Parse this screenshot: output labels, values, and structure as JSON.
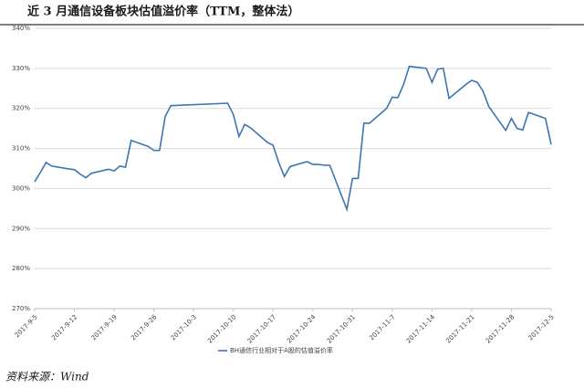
{
  "chart_data": {
    "type": "line",
    "title": "近 3 月通信设备板块估值溢价率（TTM，整体法）",
    "source": "资料来源：Wind",
    "x": [
      "2017-9-5",
      "2017-9-6",
      "2017-9-7",
      "2017-9-8",
      "2017-9-11",
      "2017-9-12",
      "2017-9-13",
      "2017-9-14",
      "2017-9-15",
      "2017-9-18",
      "2017-9-19",
      "2017-9-20",
      "2017-9-21",
      "2017-9-22",
      "2017-9-25",
      "2017-9-26",
      "2017-9-27",
      "2017-9-28",
      "2017-9-29",
      "2017-10-9",
      "2017-10-10",
      "2017-10-11",
      "2017-10-12",
      "2017-10-13",
      "2017-10-16",
      "2017-10-17",
      "2017-10-18",
      "2017-10-19",
      "2017-10-20",
      "2017-10-23",
      "2017-10-24",
      "2017-10-25",
      "2017-10-26",
      "2017-10-27",
      "2017-10-30",
      "2017-10-31",
      "2017-11-1",
      "2017-11-2",
      "2017-11-3",
      "2017-11-6",
      "2017-11-7",
      "2017-11-8",
      "2017-11-9",
      "2017-11-10",
      "2017-11-13",
      "2017-11-14",
      "2017-11-15",
      "2017-11-16",
      "2017-11-17",
      "2017-11-20",
      "2017-11-21",
      "2017-11-22",
      "2017-11-23",
      "2017-11-24",
      "2017-11-27",
      "2017-11-28",
      "2017-11-29",
      "2017-11-30",
      "2017-12-1",
      "2017-12-4",
      "2017-12-5"
    ],
    "series": [
      {
        "name": "BH通信行业相对于A股的估值溢价率",
        "color": "#3c74b4",
        "values": [
          301.7,
          304,
          306.5,
          305.6,
          304.9,
          304.7,
          303.6,
          302.7,
          303.8,
          304.8,
          304.4,
          305.6,
          305.3,
          312,
          310.5,
          309.5,
          309.5,
          318,
          320.7,
          321.3,
          318.5,
          313,
          316,
          315.2,
          311.5,
          310.8,
          306.5,
          303,
          305.5,
          306.7,
          306,
          306,
          305.8,
          305.8,
          294.8,
          302.5,
          302.5,
          316.3,
          316.3,
          320,
          322.8,
          322.7,
          326,
          330.5,
          330,
          326.5,
          329.8,
          330,
          322.5,
          326,
          327,
          326.5,
          324.3,
          320.5,
          314.5,
          317.5,
          315,
          314.6,
          319,
          317.5,
          311
        ]
      }
    ],
    "xlim": [
      "2017-9-5",
      "2017-12-5"
    ],
    "xticks": [
      "2017-9-5",
      "2017-9-12",
      "2017-9-19",
      "2017-9-26",
      "2017-10-3",
      "2017-10-10",
      "2017-10-17",
      "2017-10-24",
      "2017-10-31",
      "2017-11-7",
      "2017-11-14",
      "2017-11-21",
      "2017-11-28",
      "2017-12-5"
    ],
    "ylim": [
      270,
      340
    ],
    "yticks": [
      {
        "value": 270,
        "label": "270%"
      },
      {
        "value": 280,
        "label": "280%"
      },
      {
        "value": 290,
        "label": "290%"
      },
      {
        "value": 300,
        "label": "300%"
      },
      {
        "value": 310,
        "label": "310%"
      },
      {
        "value": 320,
        "label": "320%"
      },
      {
        "value": 330,
        "label": "330%"
      },
      {
        "value": 340,
        "label": "340%"
      }
    ],
    "grid": true
  }
}
